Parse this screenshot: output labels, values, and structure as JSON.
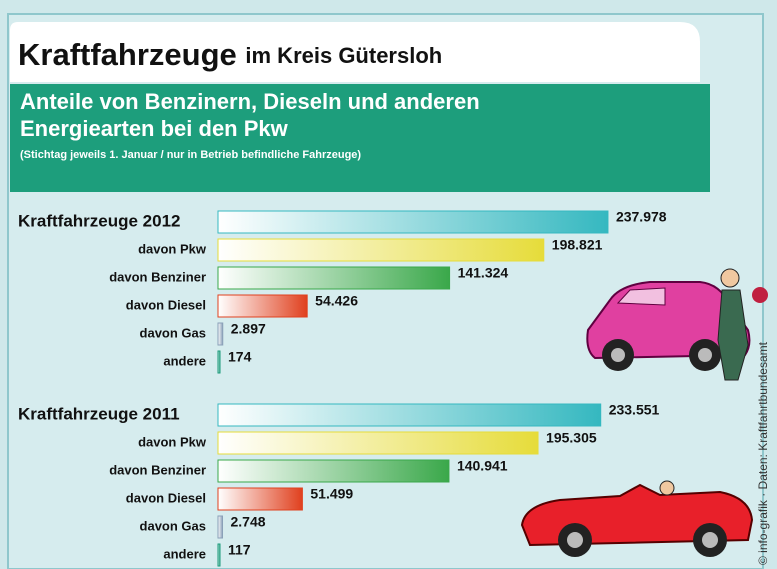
{
  "header": {
    "title": "Kraftfahrzeuge",
    "title_suffix": "im Kreis Gütersloh",
    "subtitle_line1": "Anteile von Benzinern, Dieseln und anderen",
    "subtitle_line2": "Energiearten bei den Pkw",
    "note": "(Stichtag jeweils 1. Januar / nur in Betrieb befindliche Fahrzeuge)",
    "source": "© info-grafik · Daten: Kraftfahrtbundesamt"
  },
  "chart_data": [
    {
      "type": "bar",
      "orientation": "horizontal",
      "categories": [
        "Kraftfahrzeuge 2012",
        "davon Pkw",
        "davon Benziner",
        "davon Diesel",
        "davon Gas",
        "andere"
      ],
      "values": [
        237978,
        198821,
        141324,
        54426,
        2897,
        174
      ],
      "value_labels": [
        "237.978",
        "198.821",
        "141.324",
        "54.426",
        "2.897",
        "174"
      ],
      "colors": [
        "#35b8c0",
        "#e6dc3a",
        "#3aa84a",
        "#e0401e",
        "#8aa0b8",
        "#1a9a7a"
      ]
    },
    {
      "type": "bar",
      "orientation": "horizontal",
      "categories": [
        "Kraftfahrzeuge 2011",
        "davon Pkw",
        "davon Benziner",
        "davon Diesel",
        "davon Gas",
        "andere"
      ],
      "values": [
        233551,
        195305,
        140941,
        51499,
        2748,
        117
      ],
      "value_labels": [
        "233.551",
        "195.305",
        "140.941",
        "51.499",
        "2.748",
        "117"
      ],
      "colors": [
        "#35b8c0",
        "#e6dc3a",
        "#3aa84a",
        "#e0401e",
        "#8aa0b8",
        "#1a9a7a"
      ]
    }
  ]
}
